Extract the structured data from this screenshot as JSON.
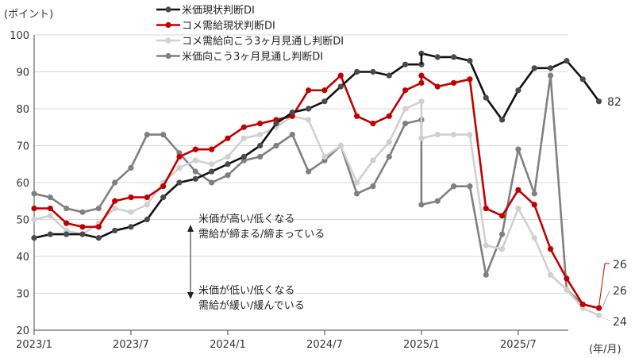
{
  "chart_data": {
    "type": "line",
    "ylabel": "(ポイント)",
    "xlabel": "(年/月)",
    "ylim": [
      20,
      100
    ],
    "yticks": [
      20,
      30,
      40,
      50,
      60,
      70,
      80,
      90,
      100
    ],
    "x_start": "2023/1",
    "x_tick_labels": [
      "2023/1",
      "2023/7",
      "2024/1",
      "2024/7",
      "2025/1",
      "2025/7"
    ],
    "grid": true,
    "legend_placement": "top-center",
    "break_note": "series break at 2025/1 (two values plotted at 2025/1)",
    "series": [
      {
        "name": "米価現状判断DI",
        "color": "#111111",
        "marker": "#4a4a4a",
        "segments": [
          {
            "start": "2023/1",
            "values": [
              45,
              46,
              46,
              46,
              45,
              47,
              48,
              50,
              56,
              60,
              61,
              63,
              65,
              67,
              70,
              76,
              79,
              80,
              82,
              86,
              90,
              90,
              89,
              92,
              92
            ]
          },
          {
            "start": "2025/1",
            "values": [
              95,
              94,
              94,
              93,
              83,
              77,
              85,
              91,
              91,
              93,
              88,
              82
            ]
          }
        ],
        "end_label": "82"
      },
      {
        "name": "コメ需給現状判断DI",
        "color": "#c00000",
        "marker": "#c00000",
        "segments": [
          {
            "start": "2023/1",
            "values": [
              53,
              53,
              49,
              48,
              48,
              55,
              56,
              56,
              59,
              67,
              69,
              69,
              72,
              75,
              76,
              77,
              78,
              85,
              85,
              89,
              78,
              76,
              78,
              85,
              87
            ]
          },
          {
            "start": "2025/1",
            "values": [
              89,
              86,
              87,
              88,
              53,
              51,
              58,
              54,
              42,
              34,
              27,
              26
            ]
          }
        ],
        "end_label": "26"
      },
      {
        "name": "コメ需給向こう3ヶ月見通し判断DI",
        "color": "#d0d0d0",
        "marker": "#d0d0d0",
        "segments": [
          {
            "start": "2023/1",
            "values": [
              50,
              51,
              47,
              46,
              49,
              53,
              52,
              54,
              60,
              64,
              66,
              65,
              67,
              72,
              73,
              75,
              78,
              77,
              67,
              70,
              60,
              66,
              71,
              80,
              82
            ]
          },
          {
            "start": "2025/1",
            "values": [
              72,
              73,
              73,
              73,
              43,
              42,
              53,
              45,
              35,
              31,
              26,
              24
            ]
          }
        ],
        "end_label": "24"
      },
      {
        "name": "米価向こう3ヶ月見通し判断DI",
        "color": "#808080",
        "marker": "#808080",
        "segments": [
          {
            "start": "2023/1",
            "values": [
              57,
              56,
              53,
              52,
              53,
              60,
              64,
              73,
              73,
              68,
              63,
              60,
              62,
              66,
              67,
              70,
              73,
              63,
              66,
              70,
              57,
              59,
              67,
              76,
              77
            ]
          },
          {
            "start": "2025/1",
            "values": [
              54,
              55,
              59,
              59,
              35,
              46,
              69,
              57,
              89,
              31,
              27,
              26
            ]
          }
        ],
        "end_label": "26"
      }
    ],
    "annotations": {
      "up": [
        "米価が高い/低くなる",
        "需給が締まる/締まっている"
      ],
      "down": [
        "米価が低い/低くなる",
        "需給が緩い/緩んでいる"
      ]
    }
  }
}
